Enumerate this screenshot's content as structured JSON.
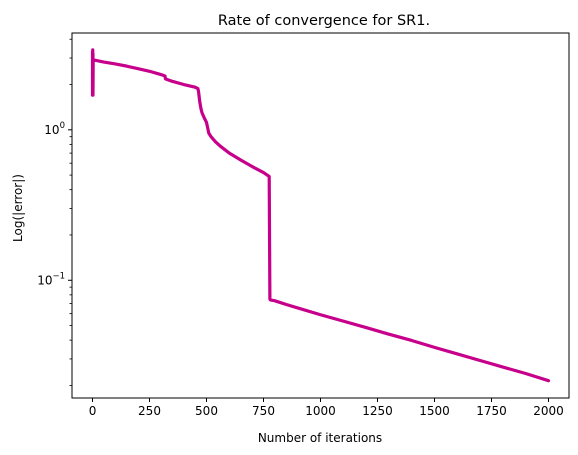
{
  "chart_data": {
    "type": "line",
    "title": "Rate of convergence for SR1.",
    "xlabel": "Number of iterations",
    "ylabel": "Log(|error|)",
    "xlim": [
      -90,
      2090
    ],
    "ylim": [
      0.0165,
      4.4
    ],
    "yscale": "log",
    "grid": false,
    "x_ticks": [
      0,
      250,
      500,
      750,
      1000,
      1250,
      1500,
      1750,
      2000
    ],
    "x_tick_labels": [
      "0",
      "250",
      "500",
      "750",
      "1000",
      "1250",
      "1500",
      "1750",
      "2000"
    ],
    "y_major_ticks": [
      {
        "value": 1,
        "base": "10",
        "exp": "0"
      },
      {
        "value": 0.1,
        "base": "10",
        "exp": "−1"
      }
    ],
    "y_minor_ticks": [
      0.02,
      0.03,
      0.04,
      0.05,
      0.06,
      0.07,
      0.08,
      0.09,
      0.2,
      0.3,
      0.4,
      0.5,
      0.6,
      0.7,
      0.8,
      0.9,
      2,
      3,
      4
    ],
    "series": [
      {
        "name": "",
        "color": "#c7008b",
        "x": [
          0,
          0,
          1,
          1,
          2,
          2,
          3,
          5,
          10,
          50,
          100,
          150,
          200,
          250,
          300,
          318,
          320,
          330,
          350,
          400,
          450,
          462,
          465,
          470,
          475,
          480,
          490,
          500,
          510,
          520,
          540,
          560,
          600,
          650,
          700,
          750,
          775,
          778,
          780,
          800,
          850,
          900,
          1000,
          1100,
          1200,
          1300,
          1400,
          1500,
          1600,
          1700,
          1800,
          1900,
          2000
        ],
        "y": [
          3.3,
          1.7,
          3.4,
          2.0,
          3.2,
          1.7,
          2.95,
          2.9,
          2.9,
          2.82,
          2.74,
          2.65,
          2.55,
          2.45,
          2.33,
          2.28,
          2.18,
          2.15,
          2.1,
          2.0,
          1.92,
          1.88,
          1.8,
          1.55,
          1.4,
          1.3,
          1.2,
          1.12,
          0.95,
          0.9,
          0.83,
          0.78,
          0.7,
          0.63,
          0.57,
          0.52,
          0.49,
          0.075,
          0.074,
          0.073,
          0.069,
          0.0655,
          0.059,
          0.0535,
          0.0485,
          0.0438,
          0.0398,
          0.0358,
          0.0324,
          0.0293,
          0.0265,
          0.024,
          0.0215
        ]
      }
    ]
  }
}
